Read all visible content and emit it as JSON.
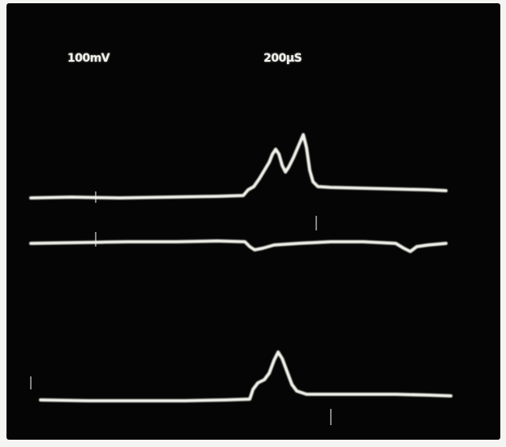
{
  "photo": {
    "volts_per_div": "100mV",
    "time_per_div": "200µS",
    "trace_color": "#f3f3ec",
    "screen_color": "#050505"
  }
}
